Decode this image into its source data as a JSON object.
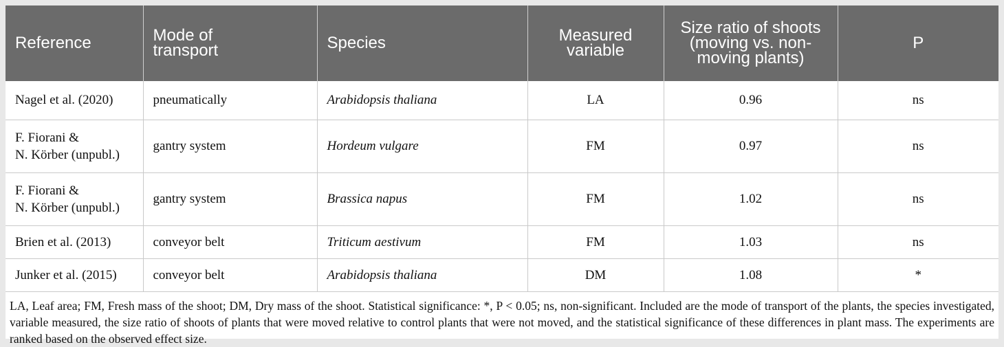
{
  "table": {
    "headers": [
      "Reference",
      "Mode of\ntransport",
      "Species",
      "Measured\nvariable",
      "Size ratio of shoots\n(moving vs. non-\nmoving plants)",
      "P"
    ],
    "rows": [
      {
        "reference": "Nagel et al. (2020)",
        "reference_is_link": true,
        "mode": "pneumatically",
        "species": "Arabidopsis thaliana",
        "variable": "LA",
        "ratio": "0.96",
        "p": "ns"
      },
      {
        "reference": "F. Fiorani &\nN. Körber (unpubl.)",
        "reference_is_link": false,
        "mode": "gantry system",
        "species": "Hordeum vulgare",
        "variable": "FM",
        "ratio": "0.97",
        "p": "ns"
      },
      {
        "reference": "F. Fiorani &\nN. Körber (unpubl.)",
        "reference_is_link": false,
        "mode": "gantry system",
        "species": "Brassica napus",
        "variable": "FM",
        "ratio": "1.02",
        "p": "ns"
      },
      {
        "reference": "Brien et al. (2013)",
        "reference_is_link": true,
        "mode": "conveyor belt",
        "species": "Triticum aestivum",
        "variable": "FM",
        "ratio": "1.03",
        "p": "ns"
      },
      {
        "reference": "Junker et al. (2015)",
        "reference_is_link": true,
        "mode": "conveyor belt",
        "species": "Arabidopsis thaliana",
        "variable": "DM",
        "ratio": "1.08",
        "p": "*"
      }
    ]
  },
  "footnote": "LA, Leaf area; FM, Fresh mass of the shoot; DM, Dry mass of the shoot. Statistical significance: *, P < 0.05; ns, non-significant. Included are the mode of transport of the plants, the species investigated, variable measured, the size ratio of shoots of plants that were moved relative to control plants that were not moved, and the statistical significance of these differences in plant mass. The experiments are ranked based on the observed effect size.",
  "colors": {
    "header_bg": "#6b6b6b",
    "link": "#3ea33e",
    "page_bg": "#e8e8e8"
  }
}
